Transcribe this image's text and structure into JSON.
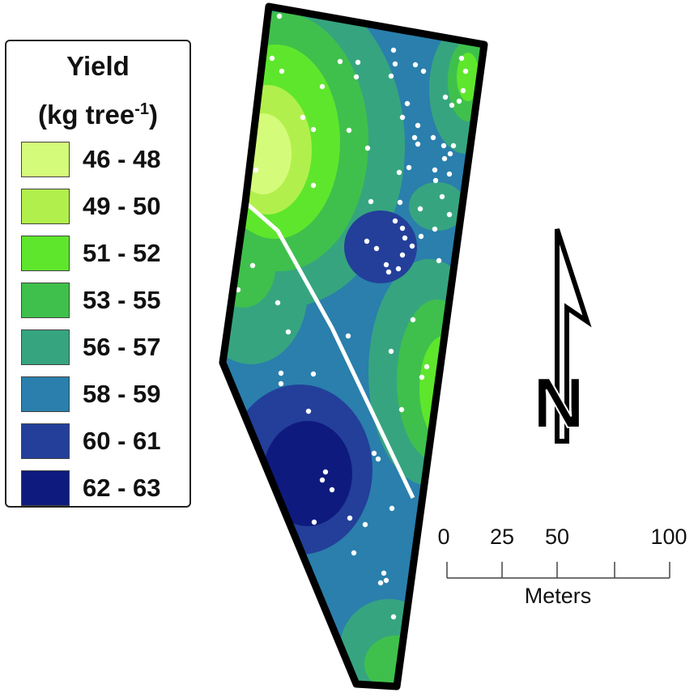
{
  "legend": {
    "title": "Yield",
    "unit_base": "(kg tree",
    "unit_exp": "-1",
    "unit_close": ")",
    "classes": [
      {
        "label": "46 - 48",
        "color": "#d5fb7a"
      },
      {
        "label": "49 - 50",
        "color": "#b1f04c"
      },
      {
        "label": "51 - 52",
        "color": "#5ee62c"
      },
      {
        "label": "53 - 55",
        "color": "#3fc04c"
      },
      {
        "label": "56 - 57",
        "color": "#36a57f"
      },
      {
        "label": "58 - 59",
        "color": "#2a7fac"
      },
      {
        "label": "60 - 61",
        "color": "#233f9a"
      },
      {
        "label": "62 - 63",
        "color": "#0f1a7e"
      }
    ]
  },
  "north_arrow": {
    "label": "N"
  },
  "scale_bar": {
    "ticks": [
      "0",
      "25",
      "50",
      "100"
    ],
    "unit": "Meters"
  }
}
